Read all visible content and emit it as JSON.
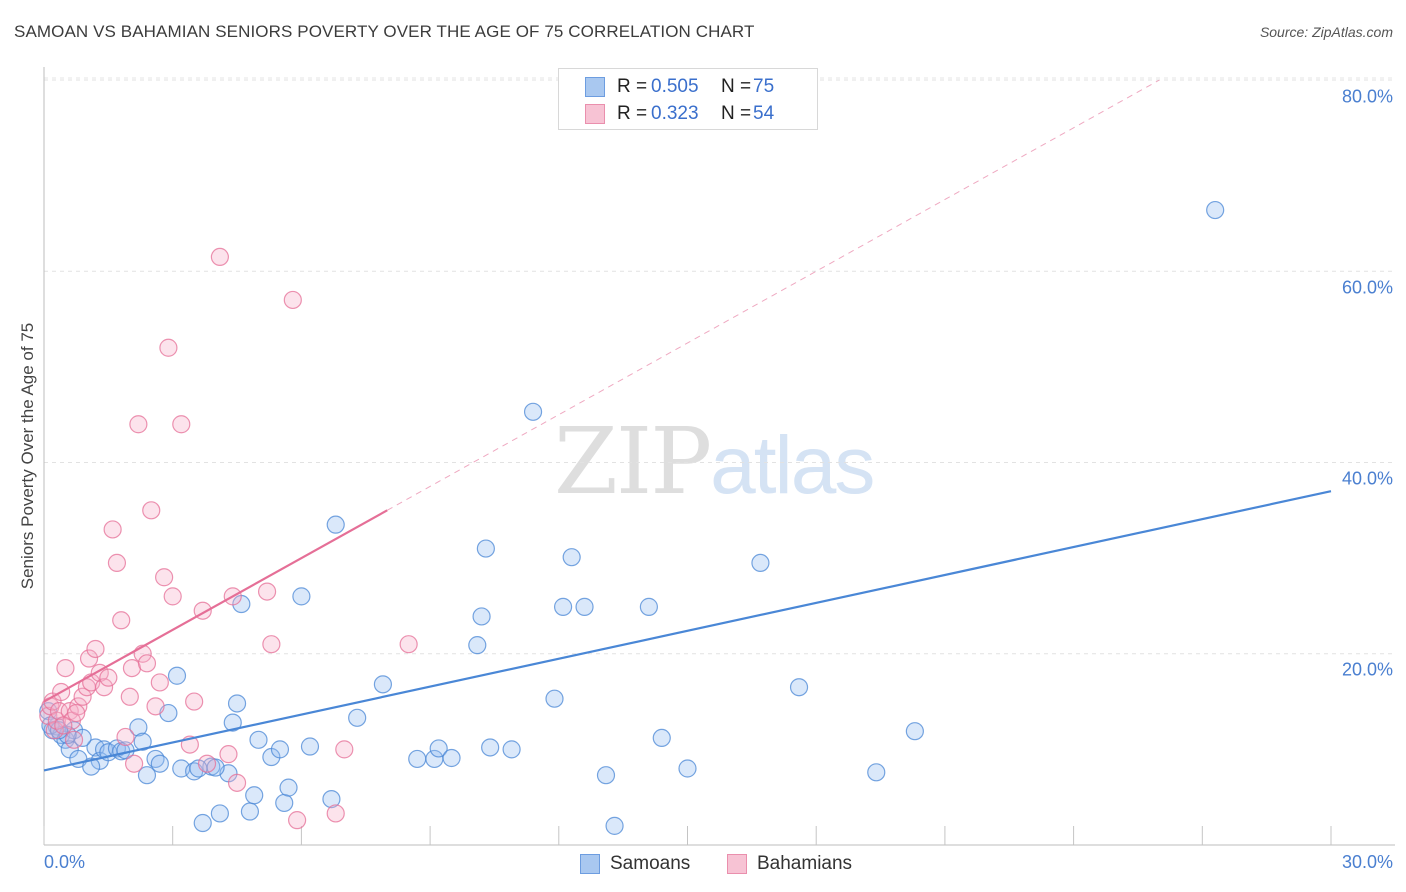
{
  "title": "SAMOAN VS BAHAMIAN SENIORS POVERTY OVER THE AGE OF 75 CORRELATION CHART",
  "source": "Source: ZipAtlas.com",
  "watermark": {
    "zip": "ZIP",
    "atlas": "atlas"
  },
  "legend": {
    "rows": [
      {
        "r_label": "R =",
        "r_value": "0.505",
        "n_label": "N =",
        "n_value": "75",
        "color": "#a9c8f0",
        "border": "#6d9de0"
      },
      {
        "r_label": "R =",
        "r_value": "0.323",
        "n_label": "N =",
        "n_value": "54",
        "color": "#f7c3d4",
        "border": "#ea8fad"
      }
    ]
  },
  "bottom_legend": [
    {
      "label": "Samoans",
      "color": "#a9c8f0",
      "border": "#6d9de0"
    },
    {
      "label": "Bahamians",
      "color": "#f7c3d4",
      "border": "#ea8fad"
    }
  ],
  "chart_data": {
    "type": "scatter",
    "title": "SAMOAN VS BAHAMIAN SENIORS POVERTY OVER THE AGE OF 75 CORRELATION CHART",
    "xlabel": "",
    "ylabel": "Seniors Poverty Over the Age of 75",
    "xlim": [
      0,
      30
    ],
    "ylim": [
      0,
      84
    ],
    "x_tick_labels": [
      "0.0%",
      "30.0%"
    ],
    "y_ticks": [
      20,
      40,
      60,
      80
    ],
    "y_tick_labels": [
      "20.0%",
      "40.0%",
      "60.0%",
      "80.0%"
    ],
    "grid": true,
    "legend_position": "top-center",
    "series": [
      {
        "name": "Samoans",
        "color": "#4a87d6",
        "fill": "rgba(150,190,240,0.35)",
        "points": [
          [
            0.1,
            14.0
          ],
          [
            0.2,
            12.0
          ],
          [
            0.3,
            12.4
          ],
          [
            0.4,
            11.5
          ],
          [
            0.5,
            11.0
          ],
          [
            0.6,
            10.0
          ],
          [
            0.7,
            12.0
          ],
          [
            0.8,
            9.0
          ],
          [
            1.2,
            10.2
          ],
          [
            1.3,
            8.8
          ],
          [
            1.4,
            10.0
          ],
          [
            1.5,
            9.7
          ],
          [
            1.7,
            10.1
          ],
          [
            1.8,
            9.8
          ],
          [
            2.2,
            12.3
          ],
          [
            2.3,
            10.8
          ],
          [
            2.6,
            9.0
          ],
          [
            2.7,
            8.5
          ],
          [
            2.9,
            13.8
          ],
          [
            3.1,
            17.7
          ],
          [
            3.2,
            8.0
          ],
          [
            3.5,
            7.7
          ],
          [
            3.7,
            2.3
          ],
          [
            3.9,
            8.2
          ],
          [
            4.1,
            3.3
          ],
          [
            4.3,
            7.5
          ],
          [
            4.4,
            12.8
          ],
          [
            4.5,
            14.8
          ],
          [
            4.6,
            25.2
          ],
          [
            4.8,
            3.5
          ],
          [
            4.9,
            5.2
          ],
          [
            5.0,
            11.0
          ],
          [
            5.3,
            9.2
          ],
          [
            5.5,
            10.0
          ],
          [
            5.6,
            4.4
          ],
          [
            5.7,
            6.0
          ],
          [
            6.2,
            10.3
          ],
          [
            6.7,
            4.8
          ],
          [
            6.8,
            33.5
          ],
          [
            7.3,
            13.3
          ],
          [
            7.9,
            16.8
          ],
          [
            8.7,
            9.0
          ],
          [
            9.1,
            9.0
          ],
          [
            9.2,
            10.1
          ],
          [
            9.5,
            9.1
          ],
          [
            10.1,
            20.9
          ],
          [
            10.2,
            23.9
          ],
          [
            10.3,
            31.0
          ],
          [
            10.4,
            10.2
          ],
          [
            10.9,
            10.0
          ],
          [
            11.4,
            45.3
          ],
          [
            11.9,
            15.3
          ],
          [
            12.1,
            24.9
          ],
          [
            12.3,
            30.1
          ],
          [
            12.6,
            24.9
          ],
          [
            13.1,
            7.3
          ],
          [
            13.3,
            2.0
          ],
          [
            14.1,
            24.9
          ],
          [
            14.4,
            11.2
          ],
          [
            15.0,
            8.0
          ],
          [
            16.7,
            29.5
          ],
          [
            17.6,
            16.5
          ],
          [
            19.4,
            7.6
          ],
          [
            20.3,
            11.9
          ],
          [
            27.3,
            66.4
          ],
          [
            0.15,
            12.5
          ],
          [
            0.9,
            11.2
          ],
          [
            1.9,
            9.9
          ],
          [
            2.4,
            7.3
          ],
          [
            3.6,
            8.0
          ],
          [
            4.0,
            8.1
          ],
          [
            0.55,
            11.5
          ],
          [
            0.35,
            12.0
          ],
          [
            1.1,
            8.2
          ],
          [
            6.0,
            26.0
          ]
        ]
      },
      {
        "name": "Bahamians",
        "color": "#e56f97",
        "fill": "rgba(245,175,200,0.35)",
        "points": [
          [
            0.1,
            13.5
          ],
          [
            0.15,
            14.5
          ],
          [
            0.2,
            15.0
          ],
          [
            0.25,
            12.0
          ],
          [
            0.3,
            13.0
          ],
          [
            0.35,
            14.0
          ],
          [
            0.4,
            16.0
          ],
          [
            0.5,
            18.5
          ],
          [
            0.6,
            14.0
          ],
          [
            0.65,
            13.0
          ],
          [
            0.7,
            11.0
          ],
          [
            0.8,
            14.5
          ],
          [
            0.9,
            15.5
          ],
          [
            1.0,
            16.5
          ],
          [
            1.05,
            19.5
          ],
          [
            1.1,
            17.0
          ],
          [
            1.2,
            20.5
          ],
          [
            1.3,
            18.0
          ],
          [
            1.4,
            16.5
          ],
          [
            1.5,
            17.5
          ],
          [
            1.6,
            33.0
          ],
          [
            1.7,
            29.5
          ],
          [
            1.8,
            23.5
          ],
          [
            1.9,
            11.3
          ],
          [
            2.0,
            15.5
          ],
          [
            2.05,
            18.5
          ],
          [
            2.1,
            8.5
          ],
          [
            2.2,
            44.0
          ],
          [
            2.3,
            20.0
          ],
          [
            2.4,
            19.0
          ],
          [
            2.5,
            35.0
          ],
          [
            2.6,
            14.5
          ],
          [
            2.7,
            17.0
          ],
          [
            2.8,
            28.0
          ],
          [
            2.9,
            52.0
          ],
          [
            3.0,
            26.0
          ],
          [
            3.2,
            44.0
          ],
          [
            3.4,
            10.5
          ],
          [
            3.5,
            15.0
          ],
          [
            3.7,
            24.5
          ],
          [
            3.8,
            8.5
          ],
          [
            4.1,
            61.5
          ],
          [
            4.3,
            9.5
          ],
          [
            4.4,
            26.0
          ],
          [
            4.5,
            6.5
          ],
          [
            5.2,
            26.5
          ],
          [
            5.3,
            21.0
          ],
          [
            5.8,
            57.0
          ],
          [
            5.9,
            2.6
          ],
          [
            6.8,
            3.3
          ],
          [
            7.0,
            10.0
          ],
          [
            8.5,
            21.0
          ],
          [
            0.45,
            12.5
          ],
          [
            0.75,
            13.8
          ]
        ]
      }
    ],
    "trend_lines": [
      {
        "series": "Samoans",
        "x": [
          0,
          30
        ],
        "y": [
          7.8,
          37.0
        ],
        "style": "solid"
      },
      {
        "series": "Bahamians",
        "x": [
          0,
          8
        ],
        "y": [
          15.0,
          35.0
        ],
        "style": "solid",
        "extended_to": [
          26,
          80.0
        ],
        "extension_style": "dashed"
      }
    ]
  }
}
